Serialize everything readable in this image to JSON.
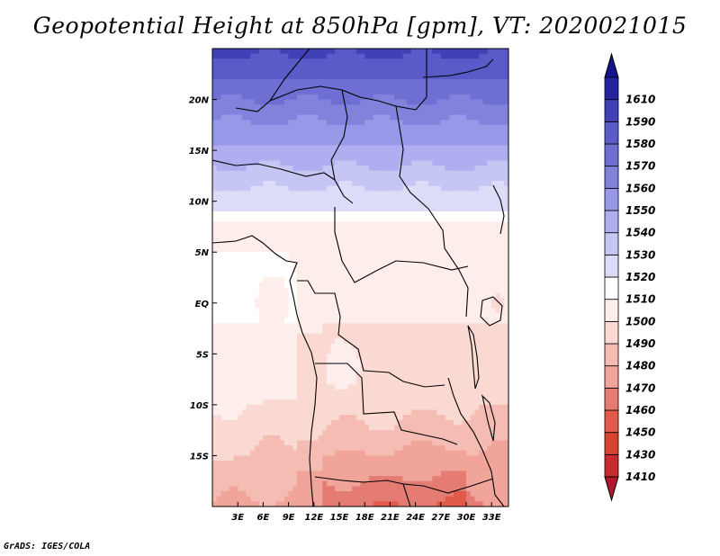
{
  "title": "Geopotential Height at 850hPa [gpm], VT: 2020021015",
  "footer": "GrADS: IGES/COLA",
  "colors": {
    "levels": [
      "#b2182b",
      "#c62b2d",
      "#d6432f",
      "#e05b4a",
      "#e47c73",
      "#f0a49a",
      "#f4bcb3",
      "#fad9d3",
      "#fdeeeb",
      "#ffffff",
      "#dcdcf8",
      "#c6c6f4",
      "#aeaef0",
      "#9898e8",
      "#8282dd",
      "#6e6ed3",
      "#5a5ac8",
      "#4040b7",
      "#2424a0",
      "#14148a"
    ]
  },
  "chart_data": {
    "type": "heatmap",
    "title": "Geopotential Height at 850hPa [gpm], VT: 2020021015",
    "variable": "Geopotential Height at 850hPa",
    "units": "gpm",
    "valid_time": "2020021015",
    "x_ticks": [
      "3E",
      "6E",
      "9E",
      "12E",
      "15E",
      "18E",
      "21E",
      "24E",
      "27E",
      "30E",
      "33E"
    ],
    "y_ticks": [
      "20N",
      "15N",
      "10N",
      "5N",
      "EQ",
      "5S",
      "10S",
      "15S"
    ],
    "lon_range": [
      0,
      35
    ],
    "lat_range": [
      -20,
      25
    ],
    "colorbar_labels": [
      "1410",
      "1430",
      "1450",
      "1460",
      "1470",
      "1480",
      "1490",
      "1500",
      "1510",
      "1520",
      "1530",
      "1540",
      "1550",
      "1560",
      "1570",
      "1580",
      "1590",
      "1610"
    ],
    "contour_levels": [
      1410,
      1430,
      1450,
      1460,
      1470,
      1480,
      1490,
      1500,
      1510,
      1520,
      1530,
      1540,
      1550,
      1560,
      1570,
      1580,
      1590,
      1610
    ]
  }
}
